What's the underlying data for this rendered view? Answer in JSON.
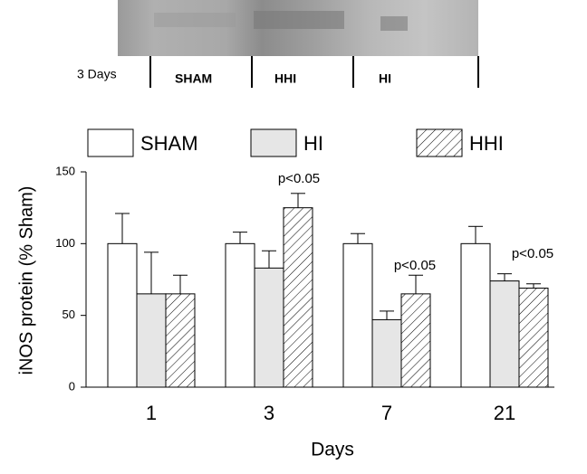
{
  "chart_data": {
    "type": "bar",
    "blot_label": "3 Days",
    "blot_lanes": [
      "SHAM",
      "HHI",
      "HI"
    ],
    "categories": [
      "1",
      "3",
      "7",
      "21"
    ],
    "series": [
      {
        "name": "SHAM",
        "color": "#ffffff",
        "hatch": false,
        "values": [
          100,
          100,
          100,
          100
        ],
        "errors": [
          21,
          8,
          7,
          12
        ]
      },
      {
        "name": "HI",
        "color": "#e6e6e6",
        "hatch": false,
        "values": [
          65,
          83,
          47,
          74
        ],
        "errors": [
          29,
          12,
          6,
          5
        ]
      },
      {
        "name": "HHI",
        "color": "#ffffff",
        "hatch": true,
        "values": [
          65,
          125,
          65,
          69
        ],
        "errors": [
          13,
          10,
          13,
          3
        ]
      }
    ],
    "annotations": [
      "p<0.05",
      "p<0.05",
      "p<0.05"
    ],
    "xlabel": "Days",
    "ylabel": "iNOS protein (% Sham)",
    "ylim": [
      0,
      150
    ],
    "yticks": [
      0,
      50,
      100,
      150
    ]
  }
}
